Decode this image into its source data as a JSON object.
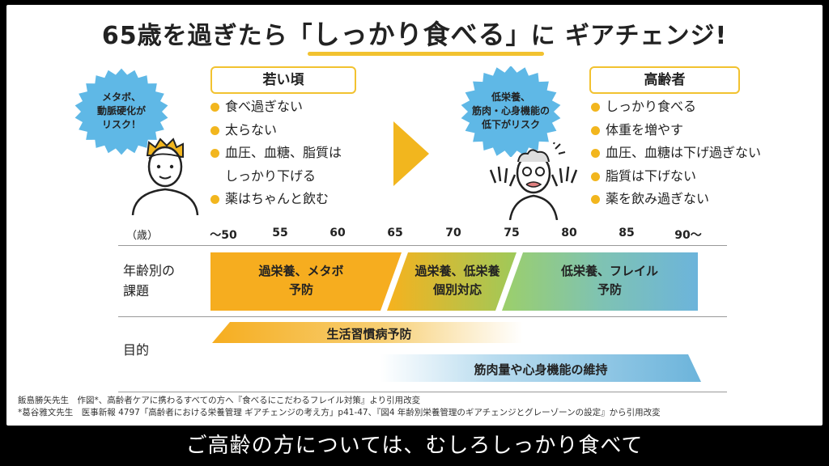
{
  "title": {
    "prefix": "65歳を過ぎたら",
    "bracket_open": "「",
    "highlight": "しっかり食べる",
    "bracket_close": "」",
    "suffix": "に ギアチェンジ!"
  },
  "young": {
    "badge_lines": [
      "メタボ、",
      "動脈硬化が",
      "リスク！"
    ],
    "header": "若い頃",
    "items": [
      "食べ過ぎない",
      "太らない",
      "血圧、血糖、脂質は",
      "薬はちゃんと飲む"
    ],
    "item3_cont": "しっかり下げる"
  },
  "elderly": {
    "badge_lines": [
      "低栄養、",
      "筋肉・心身機能の",
      "低下がリスク"
    ],
    "header": "高齢者",
    "items": [
      "しっかり食べる",
      "体重を増やす",
      "血圧、血糖は下げ過ぎない",
      "脂質は下げない",
      "薬を飲み過ぎない"
    ]
  },
  "timeline": {
    "unit_label": "（歳）",
    "ticks": [
      "〜50",
      "55",
      "60",
      "65",
      "70",
      "75",
      "80",
      "85",
      "90〜"
    ]
  },
  "issues": {
    "label_lines": [
      "年齢別の",
      "課題"
    ],
    "segments": [
      {
        "lines": [
          "過栄養、メタボ",
          "予防"
        ]
      },
      {
        "lines": [
          "過栄養、低栄養",
          "個別対応"
        ]
      },
      {
        "lines": [
          "低栄養、フレイル",
          "予防"
        ]
      }
    ]
  },
  "purpose": {
    "label": "目的",
    "bars": [
      "生活習慣病予防",
      "筋肉量や心身機能の維持"
    ]
  },
  "footnotes": [
    "飯島勝矢先生　作図*、高齢者ケアに携わるすべての方へ『食べるにこだわるフレイル対策』より引用改変",
    "*葛谷雅文先生　医事新報 4797「高齢者における栄養管理 ギアチェンジの考え方」p41-47、『図4 年齢別栄養管理のギアチェンジとグレーゾーンの設定』から引用改変"
  ],
  "subtitle": "ご高齢の方については、むしろしっかり食べて",
  "colors": {
    "accent_yellow": "#f2c230",
    "orange": "#f6ad1f",
    "green": "#a9c64b",
    "blue": "#6cb4db",
    "badge_blue": "#5fb8e6"
  },
  "icons": [
    "starburst-badge",
    "young-man-illustration",
    "play-arrow",
    "elderly-man-illustration"
  ]
}
